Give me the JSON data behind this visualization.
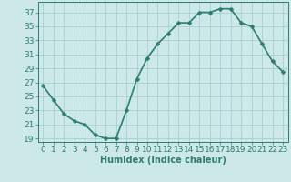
{
  "x": [
    0,
    1,
    2,
    3,
    4,
    5,
    6,
    7,
    8,
    9,
    10,
    11,
    12,
    13,
    14,
    15,
    16,
    17,
    18,
    19,
    20,
    21,
    22,
    23
  ],
  "y": [
    26.5,
    24.5,
    22.5,
    21.5,
    21.0,
    19.5,
    19.0,
    19.0,
    23.0,
    27.5,
    30.5,
    32.5,
    34.0,
    35.5,
    35.5,
    37.0,
    37.0,
    37.5,
    37.5,
    35.5,
    35.0,
    32.5,
    30.0,
    28.5
  ],
  "xlabel": "Humidex (Indice chaleur)",
  "yticks": [
    19,
    21,
    23,
    25,
    27,
    29,
    31,
    33,
    35,
    37
  ],
  "xticks": [
    0,
    1,
    2,
    3,
    4,
    5,
    6,
    7,
    8,
    9,
    10,
    11,
    12,
    13,
    14,
    15,
    16,
    17,
    18,
    19,
    20,
    21,
    22,
    23
  ],
  "ylim": [
    18.5,
    38.5
  ],
  "xlim": [
    -0.5,
    23.5
  ],
  "line_color": "#2e7d6e",
  "marker_color": "#2e7d6e",
  "bg_color": "#cce8e8",
  "grid_color": "#aacece",
  "tick_color": "#2e7d6e",
  "xlabel_fontsize": 7,
  "tick_fontsize": 6.5,
  "line_width": 1.2,
  "marker_size": 2.5
}
